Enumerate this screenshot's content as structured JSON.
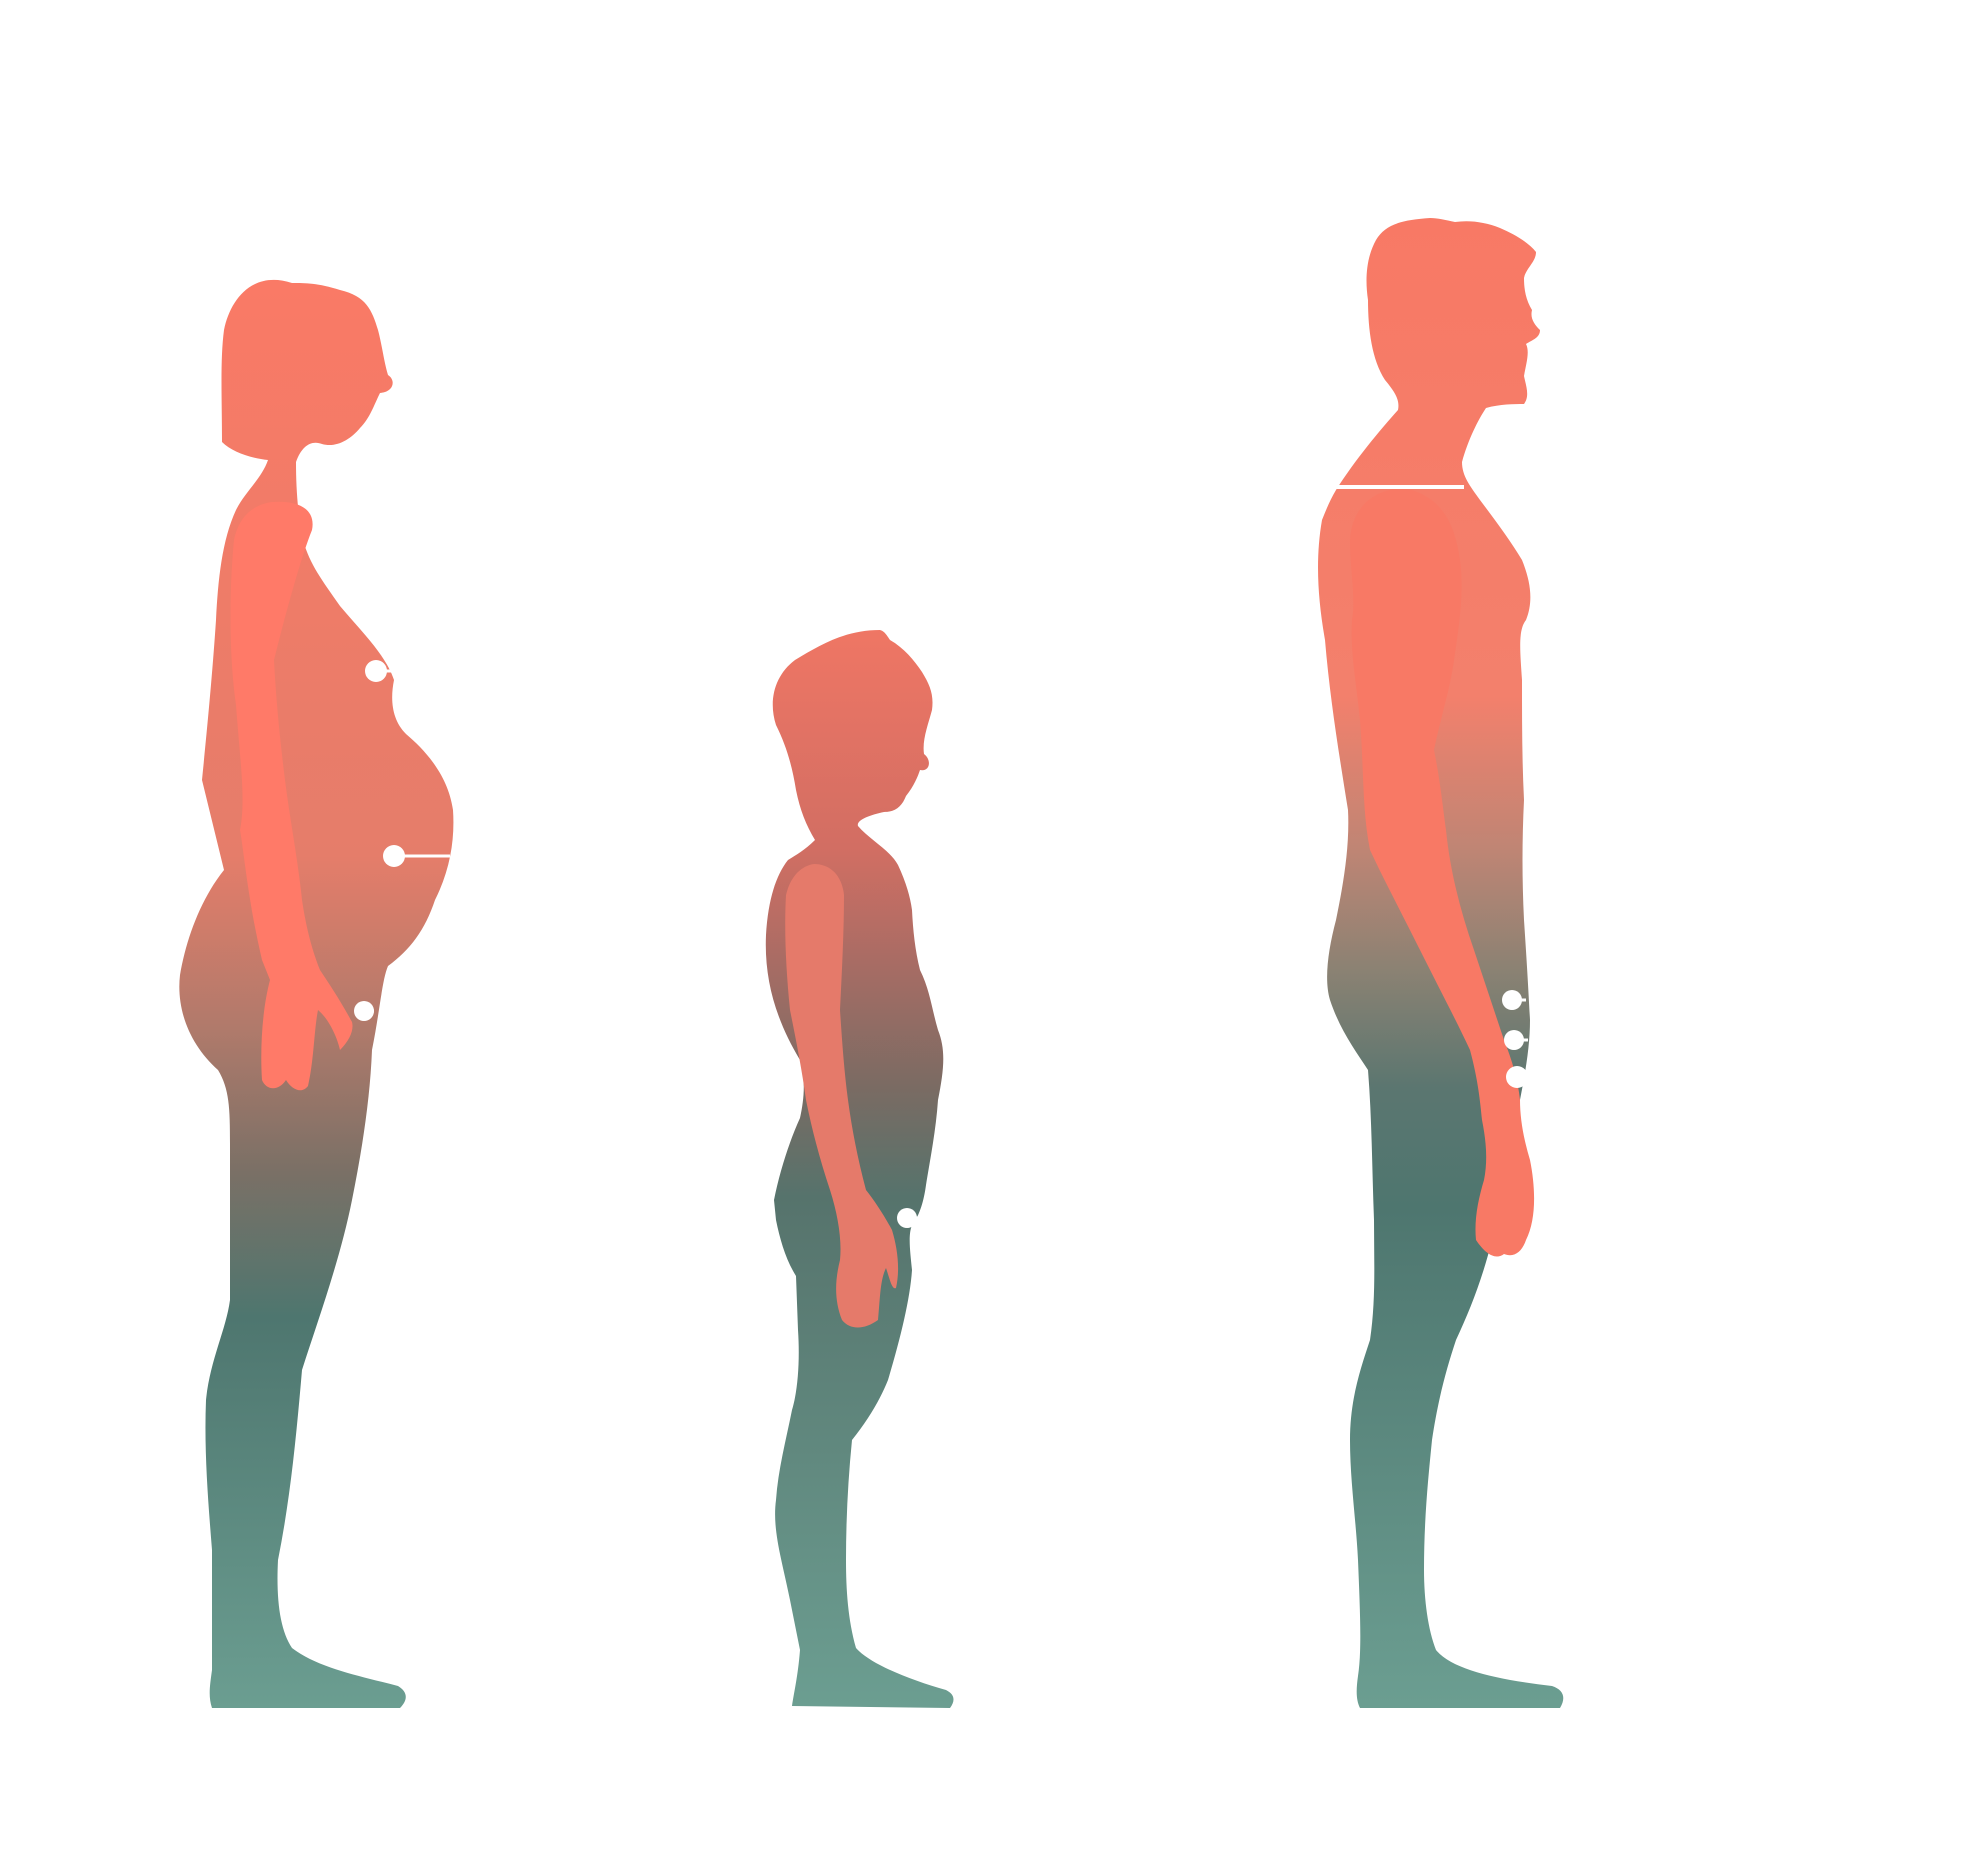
{
  "diagram": {
    "figures": [
      {
        "id": "pregnant-woman",
        "markers": 3
      },
      {
        "id": "child",
        "markers": 1
      },
      {
        "id": "man",
        "markers": 3
      }
    ]
  },
  "colors": {
    "background": "#ffffff",
    "upper_body": "#F87965",
    "mid_blend": "#9A7F73",
    "mid_dark": "#4E766F",
    "lower_body": "#689E91",
    "arm_overlay": "#FF7A68",
    "marker": "#ffffff"
  }
}
